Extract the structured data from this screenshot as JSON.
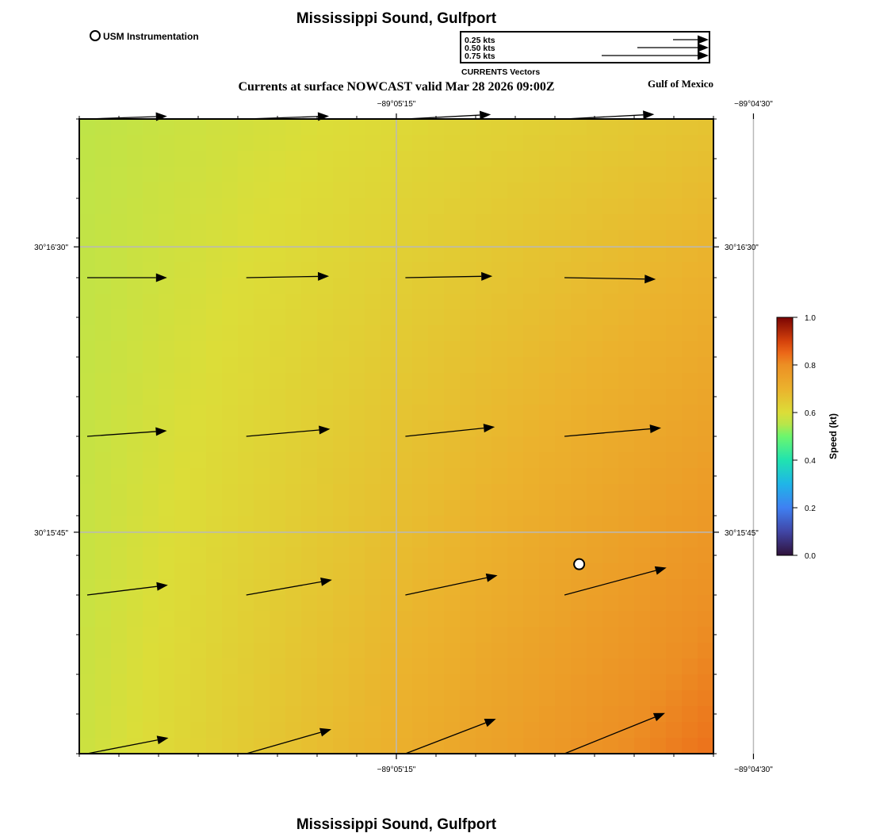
{
  "title_top": "Mississippi Sound, Gulfport",
  "title_bottom": "Mississippi Sound, Gulfport",
  "subtitle": "Currents at surface NOWCAST valid Mar 28 2026 09:00Z",
  "region_label": "Gulf of Mexico",
  "legend": {
    "marker_label": "USM Instrumentation",
    "vector_title": "CURRENTS Vectors",
    "vectors": [
      {
        "label": "0.25 kts",
        "speed": 0.25
      },
      {
        "label": "0.50 kts",
        "speed": 0.5
      },
      {
        "label": "0.75 kts",
        "speed": 0.75
      }
    ]
  },
  "axes": {
    "lon_ticks": [
      {
        "label": "−89°05'15\"",
        "value": -89.0875
      },
      {
        "label": "−89°04'30\"",
        "value": -89.075
      }
    ],
    "lat_ticks": [
      {
        "label": "30°16'30\"",
        "value": 30.275
      },
      {
        "label": "30°15'45\"",
        "value": 30.2625
      }
    ],
    "lon_range": [
      -89.0986,
      -89.0764
    ],
    "lat_range": [
      30.2528,
      30.2806
    ]
  },
  "station": {
    "lon": -89.0811,
    "lat": 30.2611
  },
  "colorbar": {
    "title": "Speed (kt)",
    "range": [
      0.0,
      1.0
    ],
    "tick_labels": [
      "0.0",
      "0.2",
      "0.4",
      "0.6",
      "0.8",
      "1.0"
    ],
    "stops": [
      {
        "value": 0.0,
        "color": "#30123b"
      },
      {
        "value": 0.1,
        "color": "#4146a6"
      },
      {
        "value": 0.2,
        "color": "#3f80f2"
      },
      {
        "value": 0.3,
        "color": "#1fb5e8"
      },
      {
        "value": 0.4,
        "color": "#20e3b0"
      },
      {
        "value": 0.5,
        "color": "#6cf66e"
      },
      {
        "value": 0.55,
        "color": "#b7e64b"
      },
      {
        "value": 0.6,
        "color": "#dcdd38"
      },
      {
        "value": 0.7,
        "color": "#ebb22d"
      },
      {
        "value": 0.8,
        "color": "#ec8f24"
      },
      {
        "value": 0.85,
        "color": "#ec6818"
      },
      {
        "value": 0.9,
        "color": "#d5420c"
      },
      {
        "value": 1.0,
        "color": "#7a0403"
      }
    ]
  },
  "speed_field": {
    "corners": {
      "top_left": 0.56,
      "top_right": 0.66,
      "bottom_left": 0.575,
      "bottom_right": 0.84
    }
  },
  "vectors": [
    {
      "row": 0,
      "col": 0,
      "speed": 0.56,
      "dir_deg": 88
    },
    {
      "row": 0,
      "col": 1,
      "speed": 0.58,
      "dir_deg": 88
    },
    {
      "row": 0,
      "col": 2,
      "speed": 0.6,
      "dir_deg": 87
    },
    {
      "row": 0,
      "col": 3,
      "speed": 0.63,
      "dir_deg": 87
    },
    {
      "row": 1,
      "col": 0,
      "speed": 0.56,
      "dir_deg": 90
    },
    {
      "row": 1,
      "col": 1,
      "speed": 0.58,
      "dir_deg": 89
    },
    {
      "row": 1,
      "col": 2,
      "speed": 0.61,
      "dir_deg": 89
    },
    {
      "row": 1,
      "col": 3,
      "speed": 0.64,
      "dir_deg": 91
    },
    {
      "row": 2,
      "col": 0,
      "speed": 0.56,
      "dir_deg": 86
    },
    {
      "row": 2,
      "col": 1,
      "speed": 0.59,
      "dir_deg": 85
    },
    {
      "row": 2,
      "col": 2,
      "speed": 0.63,
      "dir_deg": 84
    },
    {
      "row": 2,
      "col": 3,
      "speed": 0.68,
      "dir_deg": 85
    },
    {
      "row": 3,
      "col": 0,
      "speed": 0.57,
      "dir_deg": 83
    },
    {
      "row": 3,
      "col": 1,
      "speed": 0.61,
      "dir_deg": 80
    },
    {
      "row": 3,
      "col": 2,
      "speed": 0.66,
      "dir_deg": 78
    },
    {
      "row": 3,
      "col": 3,
      "speed": 0.74,
      "dir_deg": 75
    },
    {
      "row": 4,
      "col": 0,
      "speed": 0.58,
      "dir_deg": 79
    },
    {
      "row": 4,
      "col": 1,
      "speed": 0.62,
      "dir_deg": 74
    },
    {
      "row": 4,
      "col": 2,
      "speed": 0.68,
      "dir_deg": 69
    },
    {
      "row": 4,
      "col": 3,
      "speed": 0.76,
      "dir_deg": 68
    }
  ]
}
